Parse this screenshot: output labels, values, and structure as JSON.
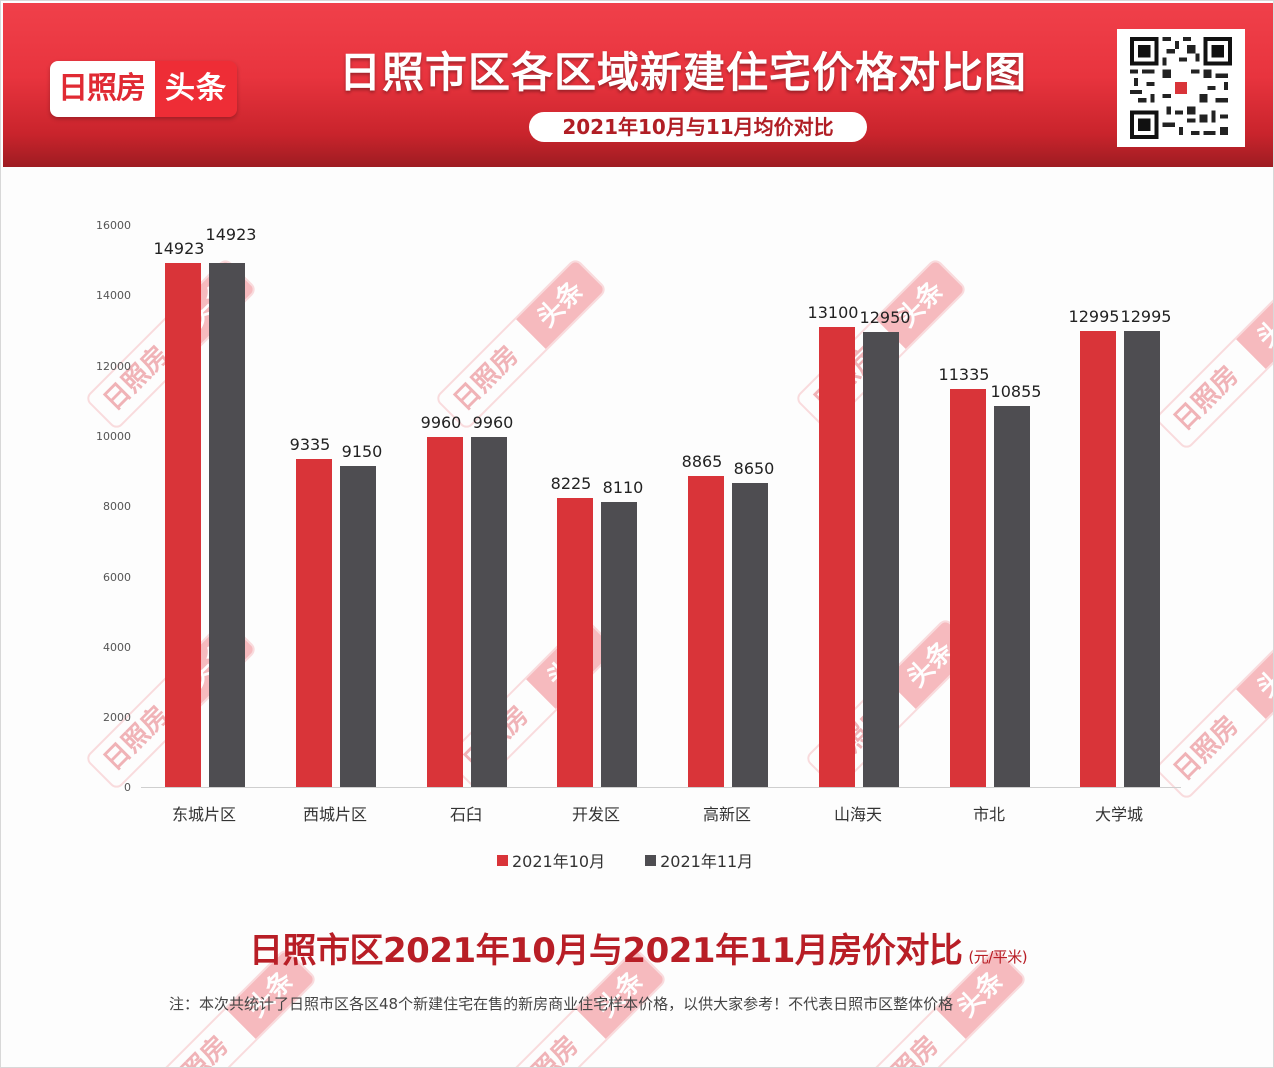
{
  "header": {
    "logo_left": "日照房",
    "logo_right": "头条",
    "title": "日照市区各区域新建住宅价格对比图",
    "pill": "2021年10月与11月均价对比",
    "qr_code": "qr-code"
  },
  "legend": {
    "oct": "2021年10月",
    "nov": "2021年11月"
  },
  "footer": {
    "subtitle": "日照市区2021年10月与2021年11月房价对比",
    "unit": "(元/平米)",
    "note": "注：本次共统计了日照市区各区48个新建住宅在售的新房商业住宅样本价格，以供大家参考！不代表日照市区整体价格"
  },
  "watermark": {
    "left": "日照房",
    "right": "头条"
  },
  "colors": {
    "oct": "#d93439",
    "nov": "#4e4d51",
    "header_red": "#e8343e",
    "subtitle_red": "#b81e26"
  },
  "chart_data": {
    "type": "bar",
    "title": "日照市区各区域新建住宅价格对比图",
    "subtitle": "2021年10月与11月均价对比",
    "xlabel": "",
    "ylabel": "元/平米",
    "ylim": [
      0,
      16000
    ],
    "yticks": [
      "0",
      "2000",
      "4000",
      "6000",
      "8000",
      "10000",
      "12000",
      "14000",
      "16000"
    ],
    "grid": false,
    "legend_position": "bottom",
    "categories": [
      "东城片区",
      "西城片区",
      "石臼",
      "开发区",
      "高新区",
      "山海天",
      "市北",
      "大学城"
    ],
    "series": [
      {
        "name": "2021年10月",
        "color": "#d93439",
        "values": [
          14923,
          9335,
          9960,
          8225,
          8865,
          13100,
          11335,
          12995
        ]
      },
      {
        "name": "2021年11月",
        "color": "#4e4d51",
        "values": [
          14923,
          9150,
          9960,
          8110,
          8650,
          12950,
          10855,
          12995
        ]
      }
    ]
  }
}
